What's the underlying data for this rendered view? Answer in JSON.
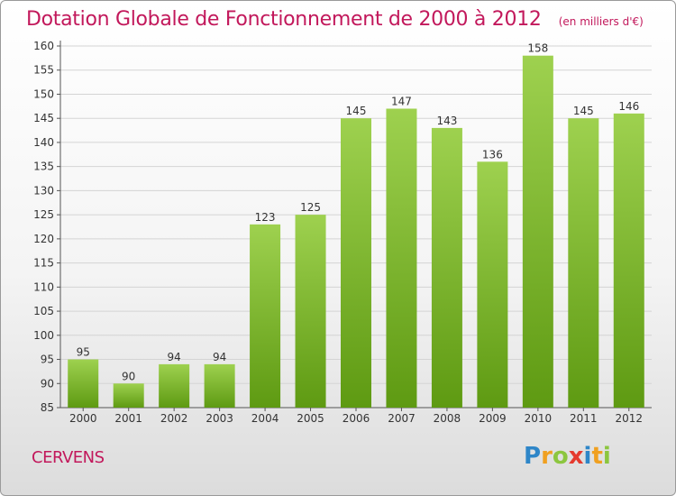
{
  "title": "Dotation Globale de Fonctionnement de 2000 à 2012",
  "subtitle": "(en milliers d'€)",
  "commune": "CERVENS",
  "logo": {
    "text": "Proxiti",
    "letters": [
      {
        "ch": "P",
        "color": "#2e86c8"
      },
      {
        "ch": "r",
        "color": "#f0a020"
      },
      {
        "ch": "o",
        "color": "#8cc63f"
      },
      {
        "ch": "x",
        "color": "#e53a2e"
      },
      {
        "ch": "i",
        "color": "#2e86c8"
      },
      {
        "ch": "t",
        "color": "#f0a020"
      },
      {
        "ch": "i",
        "color": "#8cc63f"
      }
    ]
  },
  "colors": {
    "title": "#c2185b",
    "bar_light": "#9ed14f",
    "bar_dark": "#5e9a12",
    "grid": "#d4d4d4",
    "axis": "#555555"
  },
  "chart_data": {
    "type": "bar",
    "title": "Dotation Globale de Fonctionnement de 2000 à 2012",
    "subtitle": "(en milliers d'€)",
    "categories": [
      "2000",
      "2001",
      "2002",
      "2003",
      "2004",
      "2005",
      "2006",
      "2007",
      "2008",
      "2009",
      "2010",
      "2011",
      "2012"
    ],
    "values": [
      95,
      90,
      94,
      94,
      123,
      125,
      145,
      147,
      143,
      136,
      158,
      145,
      146
    ],
    "ylim": [
      85,
      160
    ],
    "yticks": [
      85,
      90,
      95,
      100,
      105,
      110,
      115,
      120,
      125,
      130,
      135,
      140,
      145,
      150,
      155,
      160
    ],
    "grid": true,
    "legend": "none"
  }
}
